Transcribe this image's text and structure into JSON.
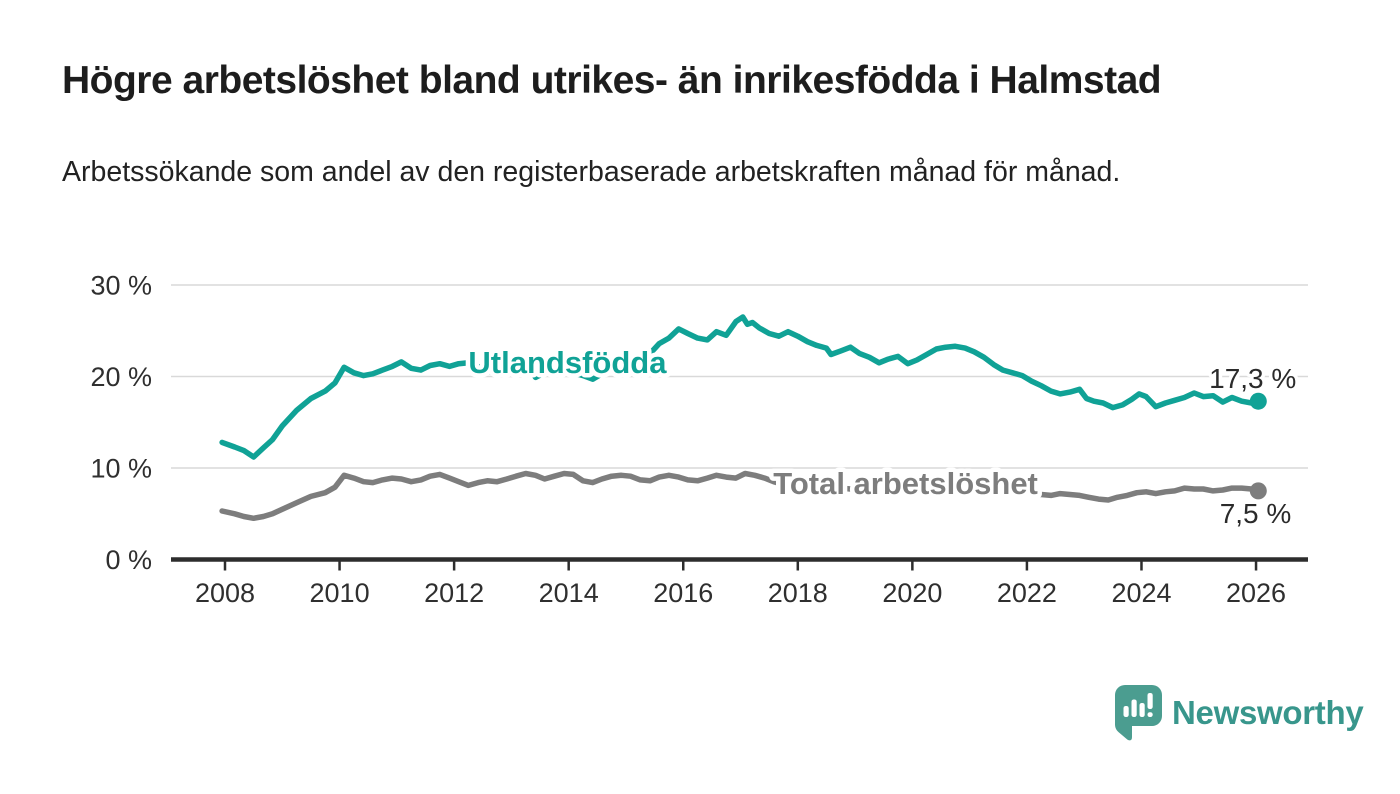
{
  "header": {
    "title": "Högre arbetslöshet bland utrikes- än inrikesfödda i Halmstad",
    "subtitle": "Arbetssökande som andel av den registerbaserade arbetskraften månad för månad."
  },
  "branding": {
    "logo_text": "Newsworthy",
    "logo_icon": "speech-bubble-bar-chart-icon",
    "brand_color": "#38968c"
  },
  "chart_data": {
    "type": "line",
    "title": "Högre arbetslöshet bland utrikes- än inrikesfödda i Halmstad",
    "subtitle": "Arbetssökande som andel av den registerbaserade arbetskraften månad för månad.",
    "x_axis": {
      "ticks": [
        2008,
        2010,
        2012,
        2014,
        2016,
        2018,
        2020,
        2022,
        2024,
        2026
      ],
      "range": [
        2007.2,
        2026.9
      ]
    },
    "y_axis": {
      "ticks": [
        0,
        10,
        20,
        30
      ],
      "tick_suffix": " %",
      "range": [
        0,
        33.3
      ]
    },
    "grid": true,
    "legend_position": "inline-labels",
    "style": {
      "grid_color": "#d9d9d9",
      "axis_color": "#2d2d2d",
      "axis_text_color": "#2f2f2f",
      "value_text_color": "#2b2b2b"
    },
    "series": [
      {
        "id": "utlandsfodda",
        "name": "Utlandsfödda",
        "color": "#10a296",
        "label_pos": {
          "x": 2012.25,
          "y": 20.4,
          "anchor": "start"
        },
        "value_label": {
          "text": "17,3 %",
          "dx": 38,
          "dy": -13
        },
        "end_value": 17.3,
        "points": [
          [
            2007.95,
            12.8
          ],
          [
            2008.17,
            12.3
          ],
          [
            2008.33,
            11.9
          ],
          [
            2008.5,
            11.2
          ],
          [
            2008.67,
            12.2
          ],
          [
            2008.83,
            13.1
          ],
          [
            2009.0,
            14.6
          ],
          [
            2009.25,
            16.3
          ],
          [
            2009.5,
            17.6
          ],
          [
            2009.75,
            18.4
          ],
          [
            2009.92,
            19.3
          ],
          [
            2010.08,
            21.0
          ],
          [
            2010.25,
            20.4
          ],
          [
            2010.42,
            20.1
          ],
          [
            2010.58,
            20.3
          ],
          [
            2010.75,
            20.7
          ],
          [
            2010.92,
            21.1
          ],
          [
            2011.08,
            21.6
          ],
          [
            2011.25,
            20.9
          ],
          [
            2011.42,
            20.7
          ],
          [
            2011.58,
            21.2
          ],
          [
            2011.75,
            21.4
          ],
          [
            2011.92,
            21.1
          ],
          [
            2012.08,
            21.4
          ],
          [
            2012.25,
            21.5
          ],
          [
            2012.42,
            21.1
          ],
          [
            2012.58,
            20.6
          ],
          [
            2012.75,
            20.4
          ],
          [
            2012.92,
            20.8
          ],
          [
            2013.08,
            21.3
          ],
          [
            2013.25,
            21.7
          ],
          [
            2013.42,
            19.9
          ],
          [
            2013.58,
            20.4
          ],
          [
            2013.75,
            20.6
          ],
          [
            2013.92,
            20.7
          ],
          [
            2014.08,
            20.4
          ],
          [
            2014.25,
            20.1
          ],
          [
            2014.42,
            19.7
          ],
          [
            2014.58,
            20.3
          ],
          [
            2014.75,
            20.6
          ],
          [
            2014.92,
            20.5
          ],
          [
            2015.08,
            20.9
          ],
          [
            2015.25,
            21.5
          ],
          [
            2015.42,
            22.5
          ],
          [
            2015.58,
            23.6
          ],
          [
            2015.75,
            24.2
          ],
          [
            2015.92,
            25.2
          ],
          [
            2016.08,
            24.7
          ],
          [
            2016.25,
            24.2
          ],
          [
            2016.42,
            24.0
          ],
          [
            2016.58,
            24.9
          ],
          [
            2016.75,
            24.5
          ],
          [
            2016.92,
            26.0
          ],
          [
            2017.04,
            26.5
          ],
          [
            2017.12,
            25.7
          ],
          [
            2017.21,
            25.9
          ],
          [
            2017.33,
            25.3
          ],
          [
            2017.5,
            24.7
          ],
          [
            2017.67,
            24.4
          ],
          [
            2017.83,
            24.9
          ],
          [
            2018.0,
            24.4
          ],
          [
            2018.17,
            23.8
          ],
          [
            2018.33,
            23.4
          ],
          [
            2018.5,
            23.1
          ],
          [
            2018.58,
            22.4
          ],
          [
            2018.75,
            22.8
          ],
          [
            2018.92,
            23.2
          ],
          [
            2019.08,
            22.5
          ],
          [
            2019.25,
            22.1
          ],
          [
            2019.42,
            21.5
          ],
          [
            2019.58,
            21.9
          ],
          [
            2019.75,
            22.2
          ],
          [
            2019.92,
            21.4
          ],
          [
            2020.08,
            21.8
          ],
          [
            2020.25,
            22.4
          ],
          [
            2020.42,
            23.0
          ],
          [
            2020.58,
            23.2
          ],
          [
            2020.75,
            23.3
          ],
          [
            2020.92,
            23.1
          ],
          [
            2021.08,
            22.7
          ],
          [
            2021.25,
            22.1
          ],
          [
            2021.42,
            21.3
          ],
          [
            2021.58,
            20.7
          ],
          [
            2021.75,
            20.4
          ],
          [
            2021.92,
            20.1
          ],
          [
            2022.08,
            19.5
          ],
          [
            2022.25,
            19.0
          ],
          [
            2022.42,
            18.4
          ],
          [
            2022.58,
            18.1
          ],
          [
            2022.75,
            18.3
          ],
          [
            2022.92,
            18.6
          ],
          [
            2023.04,
            17.6
          ],
          [
            2023.17,
            17.3
          ],
          [
            2023.33,
            17.1
          ],
          [
            2023.5,
            16.6
          ],
          [
            2023.67,
            16.9
          ],
          [
            2023.83,
            17.5
          ],
          [
            2023.96,
            18.1
          ],
          [
            2024.08,
            17.8
          ],
          [
            2024.25,
            16.7
          ],
          [
            2024.42,
            17.1
          ],
          [
            2024.58,
            17.4
          ],
          [
            2024.75,
            17.7
          ],
          [
            2024.92,
            18.2
          ],
          [
            2025.08,
            17.8
          ],
          [
            2025.25,
            17.9
          ],
          [
            2025.42,
            17.2
          ],
          [
            2025.58,
            17.7
          ],
          [
            2025.75,
            17.3
          ],
          [
            2025.92,
            17.1
          ],
          [
            2026.04,
            17.3
          ]
        ]
      },
      {
        "id": "total",
        "name": "Total arbetslöshet",
        "color": "#7d7d7d",
        "label_pos": {
          "x": 2017.57,
          "y": 7.15,
          "anchor": "start"
        },
        "value_label": {
          "text": "7,5 %",
          "dx": 33,
          "dy": 32
        },
        "end_value": 7.5,
        "points": [
          [
            2007.95,
            5.3
          ],
          [
            2008.17,
            5.0
          ],
          [
            2008.33,
            4.7
          ],
          [
            2008.5,
            4.5
          ],
          [
            2008.67,
            4.7
          ],
          [
            2008.83,
            5.0
          ],
          [
            2009.0,
            5.5
          ],
          [
            2009.25,
            6.2
          ],
          [
            2009.5,
            6.9
          ],
          [
            2009.75,
            7.3
          ],
          [
            2009.92,
            7.9
          ],
          [
            2010.08,
            9.2
          ],
          [
            2010.25,
            8.9
          ],
          [
            2010.42,
            8.5
          ],
          [
            2010.58,
            8.4
          ],
          [
            2010.75,
            8.7
          ],
          [
            2010.92,
            8.9
          ],
          [
            2011.08,
            8.8
          ],
          [
            2011.25,
            8.5
          ],
          [
            2011.42,
            8.7
          ],
          [
            2011.58,
            9.1
          ],
          [
            2011.75,
            9.3
          ],
          [
            2011.92,
            8.9
          ],
          [
            2012.08,
            8.5
          ],
          [
            2012.25,
            8.1
          ],
          [
            2012.42,
            8.4
          ],
          [
            2012.58,
            8.6
          ],
          [
            2012.75,
            8.5
          ],
          [
            2012.92,
            8.8
          ],
          [
            2013.08,
            9.1
          ],
          [
            2013.25,
            9.4
          ],
          [
            2013.42,
            9.2
          ],
          [
            2013.58,
            8.8
          ],
          [
            2013.75,
            9.1
          ],
          [
            2013.92,
            9.4
          ],
          [
            2014.08,
            9.3
          ],
          [
            2014.25,
            8.6
          ],
          [
            2014.42,
            8.4
          ],
          [
            2014.58,
            8.8
          ],
          [
            2014.75,
            9.1
          ],
          [
            2014.92,
            9.2
          ],
          [
            2015.08,
            9.1
          ],
          [
            2015.25,
            8.7
          ],
          [
            2015.42,
            8.6
          ],
          [
            2015.58,
            9.0
          ],
          [
            2015.75,
            9.2
          ],
          [
            2015.92,
            9.0
          ],
          [
            2016.08,
            8.7
          ],
          [
            2016.25,
            8.6
          ],
          [
            2016.42,
            8.9
          ],
          [
            2016.58,
            9.2
          ],
          [
            2016.75,
            9.0
          ],
          [
            2016.92,
            8.9
          ],
          [
            2017.08,
            9.4
          ],
          [
            2017.25,
            9.2
          ],
          [
            2017.42,
            8.9
          ],
          [
            2017.58,
            8.5
          ],
          [
            2017.75,
            8.2
          ],
          [
            2017.92,
            8.3
          ],
          [
            2018.08,
            8.4
          ],
          [
            2018.25,
            8.2
          ],
          [
            2018.42,
            8.0
          ],
          [
            2018.58,
            7.9
          ],
          [
            2018.75,
            7.8
          ],
          [
            2018.92,
            7.7
          ],
          [
            2019.08,
            7.6
          ],
          [
            2019.25,
            7.4
          ],
          [
            2019.42,
            7.3
          ],
          [
            2019.58,
            7.4
          ],
          [
            2019.75,
            7.5
          ],
          [
            2019.92,
            7.7
          ],
          [
            2020.08,
            8.0
          ],
          [
            2020.25,
            8.4
          ],
          [
            2020.42,
            8.7
          ],
          [
            2020.58,
            8.6
          ],
          [
            2020.75,
            8.5
          ],
          [
            2020.92,
            8.4
          ],
          [
            2021.08,
            8.3
          ],
          [
            2021.25,
            8.1
          ],
          [
            2021.42,
            7.9
          ],
          [
            2021.58,
            7.7
          ],
          [
            2021.75,
            7.5
          ],
          [
            2021.92,
            7.3
          ],
          [
            2022.08,
            7.2
          ],
          [
            2022.25,
            7.1
          ],
          [
            2022.42,
            7.0
          ],
          [
            2022.58,
            7.2
          ],
          [
            2022.75,
            7.1
          ],
          [
            2022.92,
            7.0
          ],
          [
            2023.08,
            6.8
          ],
          [
            2023.25,
            6.6
          ],
          [
            2023.42,
            6.5
          ],
          [
            2023.58,
            6.8
          ],
          [
            2023.75,
            7.0
          ],
          [
            2023.92,
            7.3
          ],
          [
            2024.08,
            7.4
          ],
          [
            2024.25,
            7.2
          ],
          [
            2024.42,
            7.4
          ],
          [
            2024.58,
            7.5
          ],
          [
            2024.75,
            7.8
          ],
          [
            2024.92,
            7.7
          ],
          [
            2025.08,
            7.7
          ],
          [
            2025.25,
            7.5
          ],
          [
            2025.42,
            7.6
          ],
          [
            2025.58,
            7.8
          ],
          [
            2025.75,
            7.8
          ],
          [
            2025.92,
            7.7
          ],
          [
            2026.04,
            7.5
          ]
        ]
      }
    ]
  }
}
